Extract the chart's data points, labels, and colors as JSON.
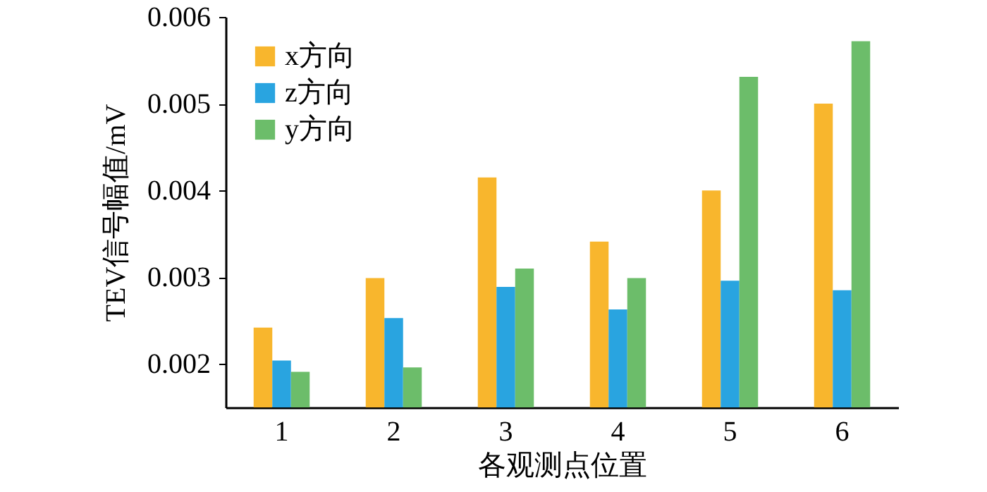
{
  "chart_data": {
    "type": "bar",
    "xlabel": "各观测点位置",
    "ylabel": "TEV信号幅值/mV",
    "categories": [
      "1",
      "2",
      "3",
      "4",
      "5",
      "6"
    ],
    "series": [
      {
        "name": "x方向",
        "color": "#f8b62d",
        "values": [
          0.00242,
          0.00299,
          0.00415,
          0.00341,
          0.004,
          0.005
        ]
      },
      {
        "name": "z方向",
        "color": "#29a4e0",
        "values": [
          0.00204,
          0.00253,
          0.00289,
          0.00263,
          0.00296,
          0.00285
        ]
      },
      {
        "name": "y方向",
        "color": "#6cbd6a",
        "values": [
          0.00191,
          0.00196,
          0.0031,
          0.00299,
          0.00531,
          0.00572
        ]
      }
    ],
    "ylim": [
      0.0015,
      0.006
    ],
    "yticks": [
      0.002,
      0.003,
      0.004,
      0.005,
      0.006
    ],
    "grid": false,
    "legend": "top left"
  }
}
